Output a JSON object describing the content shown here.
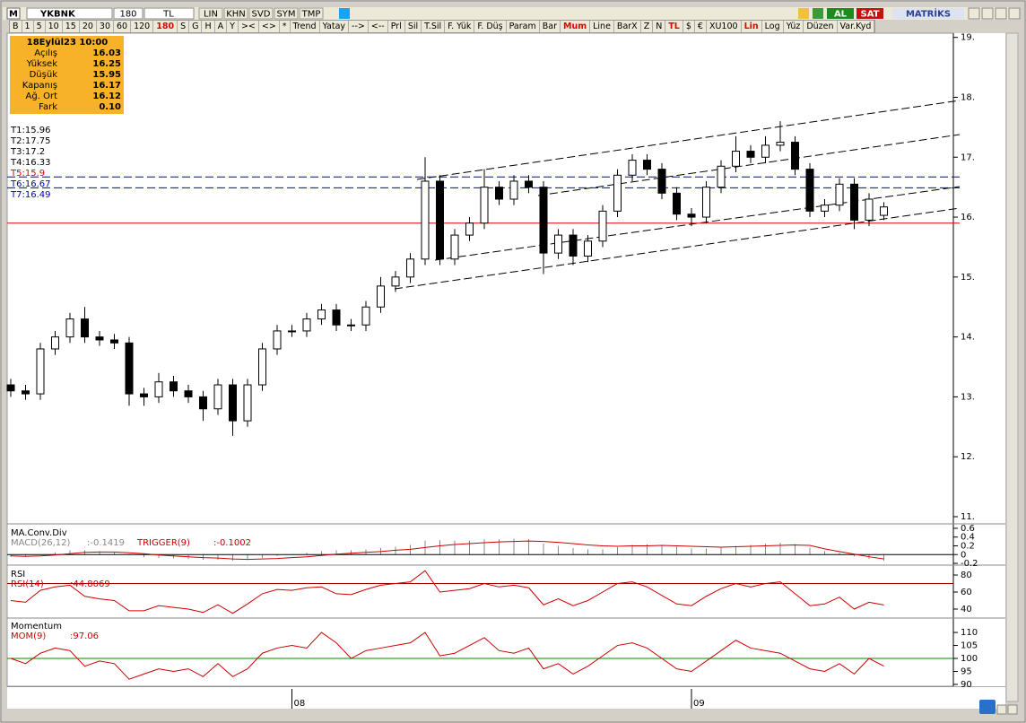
{
  "toolbar": {
    "logo": "M",
    "symbol": "YKBNK",
    "period": "180",
    "currency": "TL",
    "menus": [
      "LIN",
      "KHN",
      "SVD",
      "SYM",
      "TMP"
    ],
    "buy": "AL",
    "sell": "SAT",
    "brand": "MATRİKS"
  },
  "toolbar2": [
    "B",
    "1",
    "5",
    "10",
    "15",
    "20",
    "30",
    "60",
    "120",
    "180",
    "S",
    "G",
    "H",
    "A",
    "Y",
    "><",
    "<>",
    "*",
    "Trend",
    "Yatay",
    "-->",
    "<--",
    "Prl",
    "Sil",
    "T.Sil",
    "F. Yük",
    "F. Düş",
    "Param",
    "Bar",
    "Mum",
    "Line",
    "BarX",
    "Z",
    "N",
    "TL",
    "$",
    "€",
    "XU100",
    "Lin",
    "Log",
    "Yüz",
    "Düzen",
    "Var.Kyd"
  ],
  "toolbar2_active": [
    9,
    29,
    34,
    38
  ],
  "info_box": {
    "date": "18Eylül23 10:00",
    "rows": [
      [
        "Açılış",
        "16.03"
      ],
      [
        "Yüksek",
        "16.25"
      ],
      [
        "Düşük",
        "15.95"
      ],
      [
        "Kapanış",
        "16.17"
      ],
      [
        "Ağ. Ort",
        "16.12"
      ],
      [
        "Fark",
        "0.10"
      ]
    ]
  },
  "levels": [
    {
      "label": "T1:15.96"
    },
    {
      "label": "T2:17.75"
    },
    {
      "label": "T3:17.2"
    },
    {
      "label": "T4:16.33"
    },
    {
      "label": "T5:15.9",
      "value": 15.9,
      "color": "#e00000"
    },
    {
      "label": "T6:16.67",
      "value": 16.67,
      "color": "#0000cc"
    },
    {
      "label": "T7:16.49",
      "value": 16.49,
      "color": "#0000cc"
    }
  ],
  "chart_data": [
    {
      "type": "candlestick",
      "ylim": [
        10.91,
        19.1
      ],
      "yticks": [
        {
          "value": 19,
          "label": "19."
        },
        {
          "value": 18,
          "label": "18."
        },
        {
          "value": 17,
          "label": "17."
        },
        {
          "value": 16,
          "label": "16."
        },
        {
          "value": 15,
          "label": "15."
        },
        {
          "value": 14,
          "label": "14."
        },
        {
          "value": 13,
          "label": "13."
        },
        {
          "value": 12,
          "label": "12."
        },
        {
          "value": 11,
          "label": "11."
        }
      ],
      "categories": [
        null,
        null,
        null,
        null,
        null,
        null,
        null,
        null,
        null,
        null,
        null,
        null,
        null,
        null,
        null,
        null,
        null,
        null,
        null,
        "08",
        null,
        null,
        null,
        null,
        null,
        null,
        null,
        null,
        null,
        null,
        null,
        null,
        null,
        null,
        null,
        null,
        null,
        null,
        null,
        null,
        null,
        null,
        null,
        null,
        null,
        null,
        "09",
        null,
        null,
        null,
        null,
        null,
        null,
        null,
        null,
        null,
        null,
        null,
        null,
        null
      ],
      "open": [
        13.2,
        13.1,
        13.05,
        13.8,
        14.0,
        14.3,
        14.0,
        13.95,
        13.9,
        13.05,
        13.0,
        13.25,
        13.1,
        13.0,
        12.8,
        13.2,
        12.6,
        13.2,
        13.8,
        14.1,
        14.1,
        14.3,
        14.45,
        14.2,
        14.2,
        14.5,
        14.85,
        15.0,
        15.3,
        16.6,
        15.3,
        15.7,
        15.9,
        16.5,
        16.3,
        16.6,
        16.5,
        15.4,
        15.7,
        15.35,
        15.6,
        16.1,
        16.7,
        16.95,
        16.8,
        16.4,
        16.05,
        16.0,
        16.5,
        16.85,
        17.1,
        17.0,
        17.2,
        17.25,
        16.8,
        16.1,
        16.2,
        16.55,
        15.95,
        16.03
      ],
      "high": [
        13.3,
        13.2,
        13.9,
        14.1,
        14.4,
        14.5,
        14.1,
        14.05,
        14.0,
        13.15,
        13.4,
        13.35,
        13.2,
        13.1,
        13.3,
        13.3,
        13.3,
        13.9,
        14.2,
        14.2,
        14.4,
        14.55,
        14.55,
        14.3,
        14.6,
        15.0,
        15.1,
        15.4,
        17.0,
        16.7,
        15.8,
        16.0,
        16.8,
        16.6,
        16.7,
        16.7,
        16.6,
        15.8,
        15.8,
        15.7,
        16.2,
        16.8,
        17.05,
        17.05,
        16.9,
        16.5,
        16.15,
        16.6,
        16.95,
        17.35,
        17.2,
        17.35,
        17.6,
        17.35,
        16.9,
        16.3,
        16.65,
        16.65,
        16.4,
        16.25
      ],
      "low": [
        13.0,
        12.95,
        12.95,
        13.7,
        13.9,
        13.9,
        13.85,
        13.8,
        12.85,
        12.85,
        12.9,
        13.0,
        12.9,
        12.6,
        12.7,
        12.35,
        12.5,
        13.1,
        13.7,
        14.0,
        14.0,
        14.2,
        14.1,
        14.1,
        14.1,
        14.4,
        14.75,
        14.9,
        15.2,
        15.2,
        15.2,
        15.6,
        15.8,
        16.2,
        16.2,
        16.4,
        15.05,
        15.3,
        15.2,
        15.25,
        15.5,
        16.0,
        16.6,
        16.7,
        16.3,
        15.95,
        15.85,
        15.9,
        16.4,
        16.75,
        16.9,
        16.9,
        17.1,
        16.7,
        16.0,
        16.0,
        16.1,
        15.8,
        15.85,
        15.95
      ],
      "close": [
        13.1,
        13.05,
        13.8,
        14.0,
        14.3,
        14.0,
        13.95,
        13.9,
        13.05,
        13.0,
        13.25,
        13.1,
        13.0,
        12.8,
        13.2,
        12.6,
        13.2,
        13.8,
        14.1,
        14.1,
        14.3,
        14.45,
        14.2,
        14.2,
        14.5,
        14.85,
        15.0,
        15.3,
        16.6,
        15.3,
        15.7,
        15.9,
        16.5,
        16.3,
        16.6,
        16.5,
        15.4,
        15.7,
        15.35,
        15.6,
        16.1,
        16.7,
        16.95,
        16.8,
        16.4,
        16.05,
        16.0,
        16.5,
        16.85,
        17.1,
        17.0,
        17.2,
        17.25,
        16.8,
        16.1,
        16.2,
        16.55,
        15.95,
        16.3,
        16.17
      ]
    },
    {
      "type": "line",
      "title": "MA.Conv.Div",
      "ylim": [
        -0.22,
        0.66
      ],
      "yticks": [
        0.6,
        0.4,
        0.2,
        0,
        -0.2
      ],
      "series": [
        {
          "name": "MACD(26,12)",
          "type": "bar",
          "color": "#888888",
          "last_label": ":-0.1419",
          "values": [
            -0.05,
            -0.05,
            0.0,
            0.05,
            0.1,
            0.1,
            0.08,
            0.05,
            -0.02,
            -0.06,
            -0.08,
            -0.09,
            -0.1,
            -0.12,
            -0.12,
            -0.14,
            -0.12,
            -0.08,
            -0.03,
            0.0,
            0.04,
            0.08,
            0.1,
            0.1,
            0.12,
            0.15,
            0.18,
            0.22,
            0.32,
            0.33,
            0.32,
            0.32,
            0.35,
            0.35,
            0.36,
            0.35,
            0.25,
            0.2,
            0.15,
            0.12,
            0.12,
            0.17,
            0.22,
            0.24,
            0.22,
            0.18,
            0.14,
            0.14,
            0.16,
            0.2,
            0.22,
            0.25,
            0.27,
            0.24,
            0.16,
            0.08,
            0.04,
            -0.04,
            -0.1,
            -0.1419
          ]
        },
        {
          "name": "TRIGGER(9)",
          "type": "line",
          "color": "#cc0000",
          "last_label": ":-0.1002",
          "values": [
            -0.03,
            -0.04,
            -0.03,
            -0.01,
            0.02,
            0.05,
            0.06,
            0.06,
            0.04,
            0.02,
            -0.01,
            -0.03,
            -0.05,
            -0.07,
            -0.08,
            -0.1,
            -0.11,
            -0.1,
            -0.09,
            -0.07,
            -0.05,
            -0.02,
            0.01,
            0.03,
            0.05,
            0.07,
            0.1,
            0.12,
            0.16,
            0.2,
            0.23,
            0.25,
            0.27,
            0.29,
            0.3,
            0.31,
            0.3,
            0.28,
            0.25,
            0.22,
            0.2,
            0.19,
            0.2,
            0.2,
            0.21,
            0.2,
            0.19,
            0.18,
            0.17,
            0.18,
            0.19,
            0.2,
            0.21,
            0.22,
            0.21,
            0.13,
            0.07,
            0.01,
            -0.05,
            -0.1002
          ]
        }
      ]
    },
    {
      "type": "line",
      "title": "RSI",
      "ylim": [
        30.5,
        89.5
      ],
      "yticks": [
        80,
        60,
        40
      ],
      "ref_line": {
        "value": 70,
        "color": "#990000"
      },
      "series": [
        {
          "name": "RSI(14)",
          "type": "line",
          "color": "#cc0000",
          "last_label": ":44.8069",
          "values": [
            50,
            48,
            62,
            66,
            68,
            55,
            52,
            50,
            38,
            38,
            44,
            42,
            40,
            36,
            45,
            35,
            46,
            58,
            63,
            62,
            65,
            66,
            58,
            57,
            63,
            68,
            70,
            72,
            85,
            60,
            62,
            64,
            70,
            66,
            68,
            65,
            45,
            52,
            44,
            50,
            60,
            70,
            72,
            66,
            56,
            46,
            44,
            55,
            64,
            70,
            66,
            70,
            72,
            58,
            44,
            46,
            54,
            40,
            48,
            44.8069
          ]
        }
      ]
    },
    {
      "type": "line",
      "title": "Momentum",
      "ylim": [
        89.3,
        115.2
      ],
      "yticks": [
        110,
        105,
        100,
        95,
        90
      ],
      "ref_line": {
        "value": 100,
        "color": "#008800"
      },
      "series": [
        {
          "name": "MOM(9)",
          "type": "line",
          "color": "#cc0000",
          "last_label": ":97.06",
          "values": [
            100,
            98,
            102,
            104,
            103,
            97,
            99,
            98,
            92,
            94,
            96,
            95,
            96,
            93,
            98,
            93,
            96,
            102,
            104,
            105,
            104,
            110,
            106,
            100,
            103,
            104,
            105,
            106,
            110,
            101,
            102,
            105,
            108,
            103,
            102,
            104,
            96,
            98,
            94,
            97,
            101,
            105,
            106,
            104,
            100,
            96,
            95,
            99,
            103,
            107,
            104,
            103,
            102,
            99,
            96,
            95,
            98,
            94,
            100,
            97.06
          ]
        }
      ]
    }
  ]
}
